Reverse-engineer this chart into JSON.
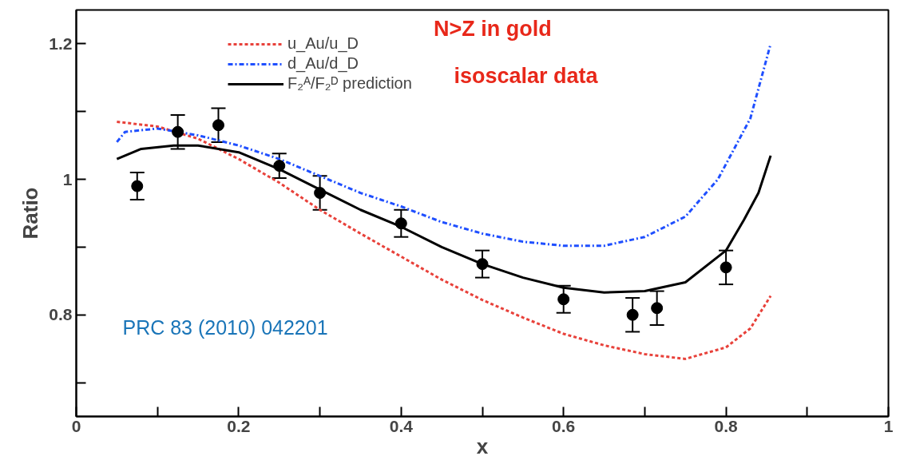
{
  "chart_data": {
    "type": "line",
    "xlabel": "x",
    "ylabel": "Ratio",
    "xlim": [
      0,
      1
    ],
    "ylim": [
      0.65,
      1.25
    ],
    "xticks": [
      0,
      {
        "value": 0.1,
        "label": null
      },
      0.2,
      {
        "value": 0.3,
        "label": null
      },
      0.4,
      {
        "value": 0.5,
        "label": null
      },
      0.6,
      {
        "value": 0.7,
        "label": null
      },
      0.8,
      {
        "value": 0.9,
        "label": null
      },
      1
    ],
    "yticks": [
      {
        "value": 0.7,
        "label": null
      },
      0.8,
      {
        "value": 0.9,
        "label": null
      },
      1,
      {
        "value": 1.1,
        "label": null
      },
      1.2
    ],
    "grid": false,
    "legend": "top",
    "series": [
      {
        "name": "u_Au/u_D",
        "color": "#e8413a",
        "line_style": "dashed",
        "x": [
          0.05,
          0.1,
          0.15,
          0.2,
          0.25,
          0.3,
          0.35,
          0.4,
          0.45,
          0.5,
          0.55,
          0.6,
          0.65,
          0.7,
          0.75,
          0.8,
          0.83,
          0.855
        ],
        "values": [
          1.085,
          1.078,
          1.06,
          1.03,
          0.995,
          0.955,
          0.92,
          0.886,
          0.852,
          0.822,
          0.796,
          0.772,
          0.755,
          0.742,
          0.735,
          0.752,
          0.78,
          0.828
        ]
      },
      {
        "name": "d_Au/d_D",
        "color": "#1f4fff",
        "line_style": "dashdot",
        "x": [
          0.05,
          0.06,
          0.1,
          0.15,
          0.2,
          0.25,
          0.3,
          0.35,
          0.4,
          0.45,
          0.5,
          0.55,
          0.6,
          0.65,
          0.7,
          0.75,
          0.79,
          0.83,
          0.855
        ],
        "values": [
          1.055,
          1.07,
          1.075,
          1.065,
          1.05,
          1.03,
          1.005,
          0.98,
          0.96,
          0.937,
          0.92,
          0.908,
          0.902,
          0.902,
          0.915,
          0.945,
          1.0,
          1.09,
          1.2
        ]
      },
      {
        "name": "F₂ᴬ/F₂ᴰ prediction",
        "color": "#000000",
        "line_style": "solid",
        "x": [
          0.05,
          0.08,
          0.12,
          0.15,
          0.2,
          0.25,
          0.3,
          0.35,
          0.4,
          0.45,
          0.5,
          0.55,
          0.6,
          0.65,
          0.7,
          0.75,
          0.8,
          0.822,
          0.84,
          0.855
        ],
        "values": [
          1.03,
          1.045,
          1.05,
          1.05,
          1.04,
          1.015,
          0.985,
          0.955,
          0.93,
          0.9,
          0.875,
          0.855,
          0.84,
          0.833,
          0.835,
          0.848,
          0.895,
          0.94,
          0.98,
          1.035
        ]
      },
      {
        "type": "scatter",
        "color": "#000000",
        "marker": "circle",
        "x": [
          0.075,
          0.125,
          0.175,
          0.25,
          0.3,
          0.4,
          0.5,
          0.6,
          0.685,
          0.715,
          0.8
        ],
        "values": [
          0.99,
          1.07,
          1.08,
          1.02,
          0.98,
          0.935,
          0.875,
          0.823,
          0.8,
          0.81,
          0.87
        ],
        "errors": [
          0.02,
          0.025,
          0.025,
          0.018,
          0.025,
          0.02,
          0.02,
          0.02,
          0.025,
          0.025,
          0.025
        ]
      }
    ],
    "annotations": [
      "N>Z in gold",
      "isoscalar data",
      "PRC 83 (2010) 042201"
    ]
  }
}
